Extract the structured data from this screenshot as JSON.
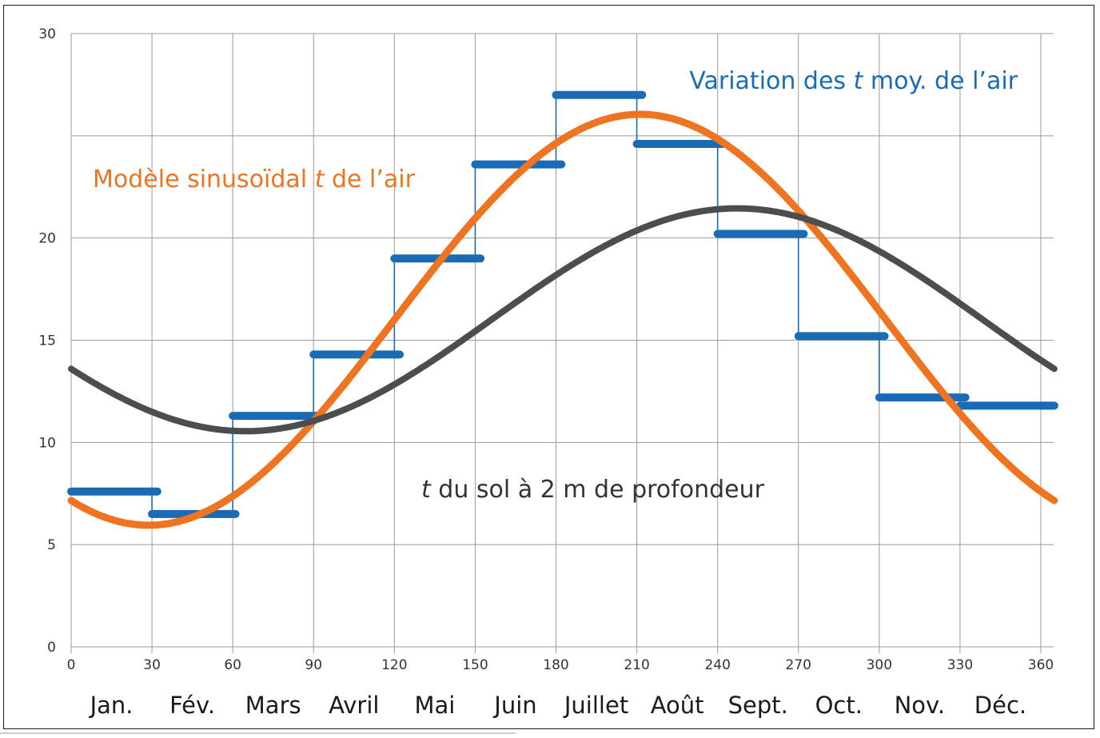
{
  "chart_data": {
    "type": "line",
    "x_ticks": [
      "0",
      "30",
      "60",
      "90",
      "120",
      "150",
      "180",
      "210",
      "240",
      "270",
      "300",
      "330",
      "360"
    ],
    "y_ticks": [
      "0",
      "5",
      "10",
      "15",
      "20",
      "30"
    ],
    "xlim": [
      0,
      360
    ],
    "ylim": [
      0,
      30
    ],
    "months": [
      "Jan.",
      "Fév.",
      "Mars",
      "Avril",
      "Mai",
      "Juin",
      "Juillet",
      "Août",
      "Sept.",
      "Oct.",
      "Nov.",
      "Déc."
    ],
    "annotations": {
      "air_variation": {
        "pre": "Variation des ",
        "italic": "t",
        "post": " moy. de l’air"
      },
      "air_model": {
        "pre": "Modèle sinusoïdal ",
        "italic": "t",
        "post": " de l’air"
      },
      "soil": {
        "pre": "",
        "italic": "t",
        "post": " du sol à 2 m de profondeur"
      }
    },
    "series": [
      {
        "key": "monthly_air",
        "color": "#1a6bb5",
        "steps": [
          {
            "x0": 0,
            "x1": 32,
            "y": 7.6
          },
          {
            "x0": 30,
            "x1": 61,
            "y": 6.5
          },
          {
            "x0": 60,
            "x1": 92,
            "y": 11.3
          },
          {
            "x0": 90,
            "x1": 122,
            "y": 14.3
          },
          {
            "x0": 120,
            "x1": 152,
            "y": 19.0
          },
          {
            "x0": 150,
            "x1": 182,
            "y": 23.6
          },
          {
            "x0": 180,
            "x1": 212,
            "y": 27.0
          },
          {
            "x0": 210,
            "x1": 242,
            "y": 24.6
          },
          {
            "x0": 240,
            "x1": 272,
            "y": 20.2
          },
          {
            "x0": 270,
            "x1": 302,
            "y": 15.2
          },
          {
            "x0": 300,
            "x1": 332,
            "y": 12.2
          },
          {
            "x0": 330,
            "x1": 365,
            "y": 11.8
          }
        ]
      },
      {
        "key": "air_model",
        "color": "#ee7421",
        "mean": 16.0,
        "amplitude": 10.05,
        "phase_day": 120,
        "period": 365
      },
      {
        "key": "soil_2m",
        "color": "#4d4d4d",
        "mean": 16.0,
        "amplitude": 5.45,
        "phase_day": 156,
        "period": 365
      }
    ]
  }
}
